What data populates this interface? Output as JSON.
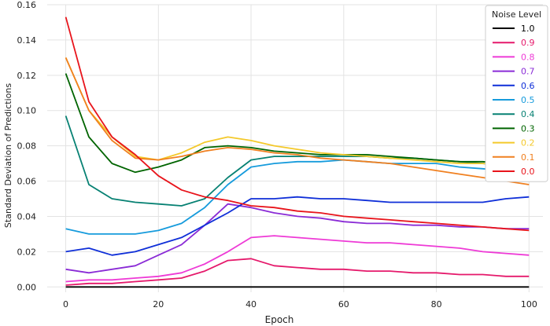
{
  "chart_data": {
    "type": "line",
    "title": "",
    "xlabel": "Epoch",
    "ylabel": "Standard Deviation of Predictions",
    "xlim": [
      -4,
      103
    ],
    "ylim": [
      -0.003,
      0.16
    ],
    "xticks": [
      0,
      20,
      40,
      60,
      80,
      100
    ],
    "yticks": [
      0.0,
      0.02,
      0.04,
      0.06,
      0.08,
      0.1,
      0.12,
      0.14,
      0.16
    ],
    "xtick_labels": [
      "0",
      "20",
      "40",
      "60",
      "80",
      "100"
    ],
    "ytick_labels": [
      "0.00",
      "0.02",
      "0.04",
      "0.06",
      "0.08",
      "0.10",
      "0.12",
      "0.14",
      "0.16"
    ],
    "grid": true,
    "legend": {
      "title": "Noise Level",
      "placement": "top-right"
    },
    "x": [
      0,
      5,
      10,
      15,
      20,
      25,
      30,
      35,
      40,
      45,
      50,
      55,
      60,
      65,
      70,
      75,
      80,
      85,
      90,
      95,
      100
    ],
    "series": [
      {
        "name": "1.0",
        "color": "#000000",
        "values": [
          0.0,
          0.0,
          0.0,
          0.0,
          0.0,
          0.0,
          0.0,
          0.0,
          0.0,
          0.0,
          0.0,
          0.0,
          0.0,
          0.0,
          0.0,
          0.0,
          0.0,
          0.0,
          0.0,
          0.0,
          0.0
        ]
      },
      {
        "name": "0.9",
        "color": "#e5196b",
        "values": [
          0.001,
          0.002,
          0.002,
          0.003,
          0.004,
          0.005,
          0.009,
          0.015,
          0.016,
          0.012,
          0.011,
          0.01,
          0.01,
          0.009,
          0.009,
          0.008,
          0.008,
          0.007,
          0.007,
          0.006,
          0.006
        ]
      },
      {
        "name": "0.8",
        "color": "#ee3ad6",
        "values": [
          0.003,
          0.004,
          0.004,
          0.005,
          0.006,
          0.008,
          0.013,
          0.02,
          0.028,
          0.029,
          0.028,
          0.027,
          0.026,
          0.025,
          0.025,
          0.024,
          0.023,
          0.022,
          0.02,
          0.019,
          0.018
        ]
      },
      {
        "name": "0.7",
        "color": "#8a2bd6",
        "values": [
          0.01,
          0.008,
          0.01,
          0.012,
          0.018,
          0.024,
          0.035,
          0.047,
          0.045,
          0.042,
          0.04,
          0.039,
          0.037,
          0.036,
          0.036,
          0.035,
          0.035,
          0.034,
          0.034,
          0.033,
          0.033
        ]
      },
      {
        "name": "0.6",
        "color": "#0f2fd8",
        "values": [
          0.02,
          0.022,
          0.018,
          0.02,
          0.024,
          0.028,
          0.035,
          0.042,
          0.05,
          0.05,
          0.051,
          0.05,
          0.05,
          0.049,
          0.048,
          0.048,
          0.048,
          0.048,
          0.048,
          0.05,
          0.051
        ]
      },
      {
        "name": "0.5",
        "color": "#169bdc",
        "values": [
          0.033,
          0.03,
          0.03,
          0.03,
          0.032,
          0.036,
          0.045,
          0.058,
          0.068,
          0.07,
          0.071,
          0.071,
          0.072,
          0.071,
          0.07,
          0.07,
          0.07,
          0.068,
          0.067,
          0.066,
          0.064
        ]
      },
      {
        "name": "0.4",
        "color": "#078173",
        "values": [
          0.097,
          0.058,
          0.05,
          0.048,
          0.047,
          0.046,
          0.05,
          0.062,
          0.072,
          0.074,
          0.074,
          0.074,
          0.074,
          0.074,
          0.073,
          0.073,
          0.072,
          0.071,
          0.07,
          0.069,
          0.068
        ]
      },
      {
        "name": "0.3",
        "color": "#006400",
        "values": [
          0.121,
          0.085,
          0.07,
          0.065,
          0.068,
          0.072,
          0.079,
          0.08,
          0.079,
          0.077,
          0.076,
          0.075,
          0.075,
          0.075,
          0.074,
          0.073,
          0.072,
          0.071,
          0.071,
          0.07,
          0.069
        ]
      },
      {
        "name": "0.2",
        "color": "#f4c92b",
        "values": [
          0.13,
          0.1,
          0.085,
          0.074,
          0.072,
          0.076,
          0.082,
          0.085,
          0.083,
          0.08,
          0.078,
          0.076,
          0.075,
          0.074,
          0.073,
          0.072,
          0.071,
          0.07,
          0.07,
          0.069,
          0.068
        ]
      },
      {
        "name": "0.1",
        "color": "#f08020",
        "values": [
          0.13,
          0.1,
          0.083,
          0.073,
          0.072,
          0.074,
          0.077,
          0.079,
          0.078,
          0.076,
          0.075,
          0.073,
          0.072,
          0.071,
          0.07,
          0.068,
          0.066,
          0.064,
          0.062,
          0.06,
          0.058
        ]
      },
      {
        "name": "0.0",
        "color": "#e8141b",
        "values": [
          0.153,
          0.105,
          0.085,
          0.075,
          0.063,
          0.055,
          0.051,
          0.049,
          0.046,
          0.045,
          0.043,
          0.042,
          0.04,
          0.039,
          0.038,
          0.037,
          0.036,
          0.035,
          0.034,
          0.033,
          0.032
        ]
      }
    ]
  }
}
